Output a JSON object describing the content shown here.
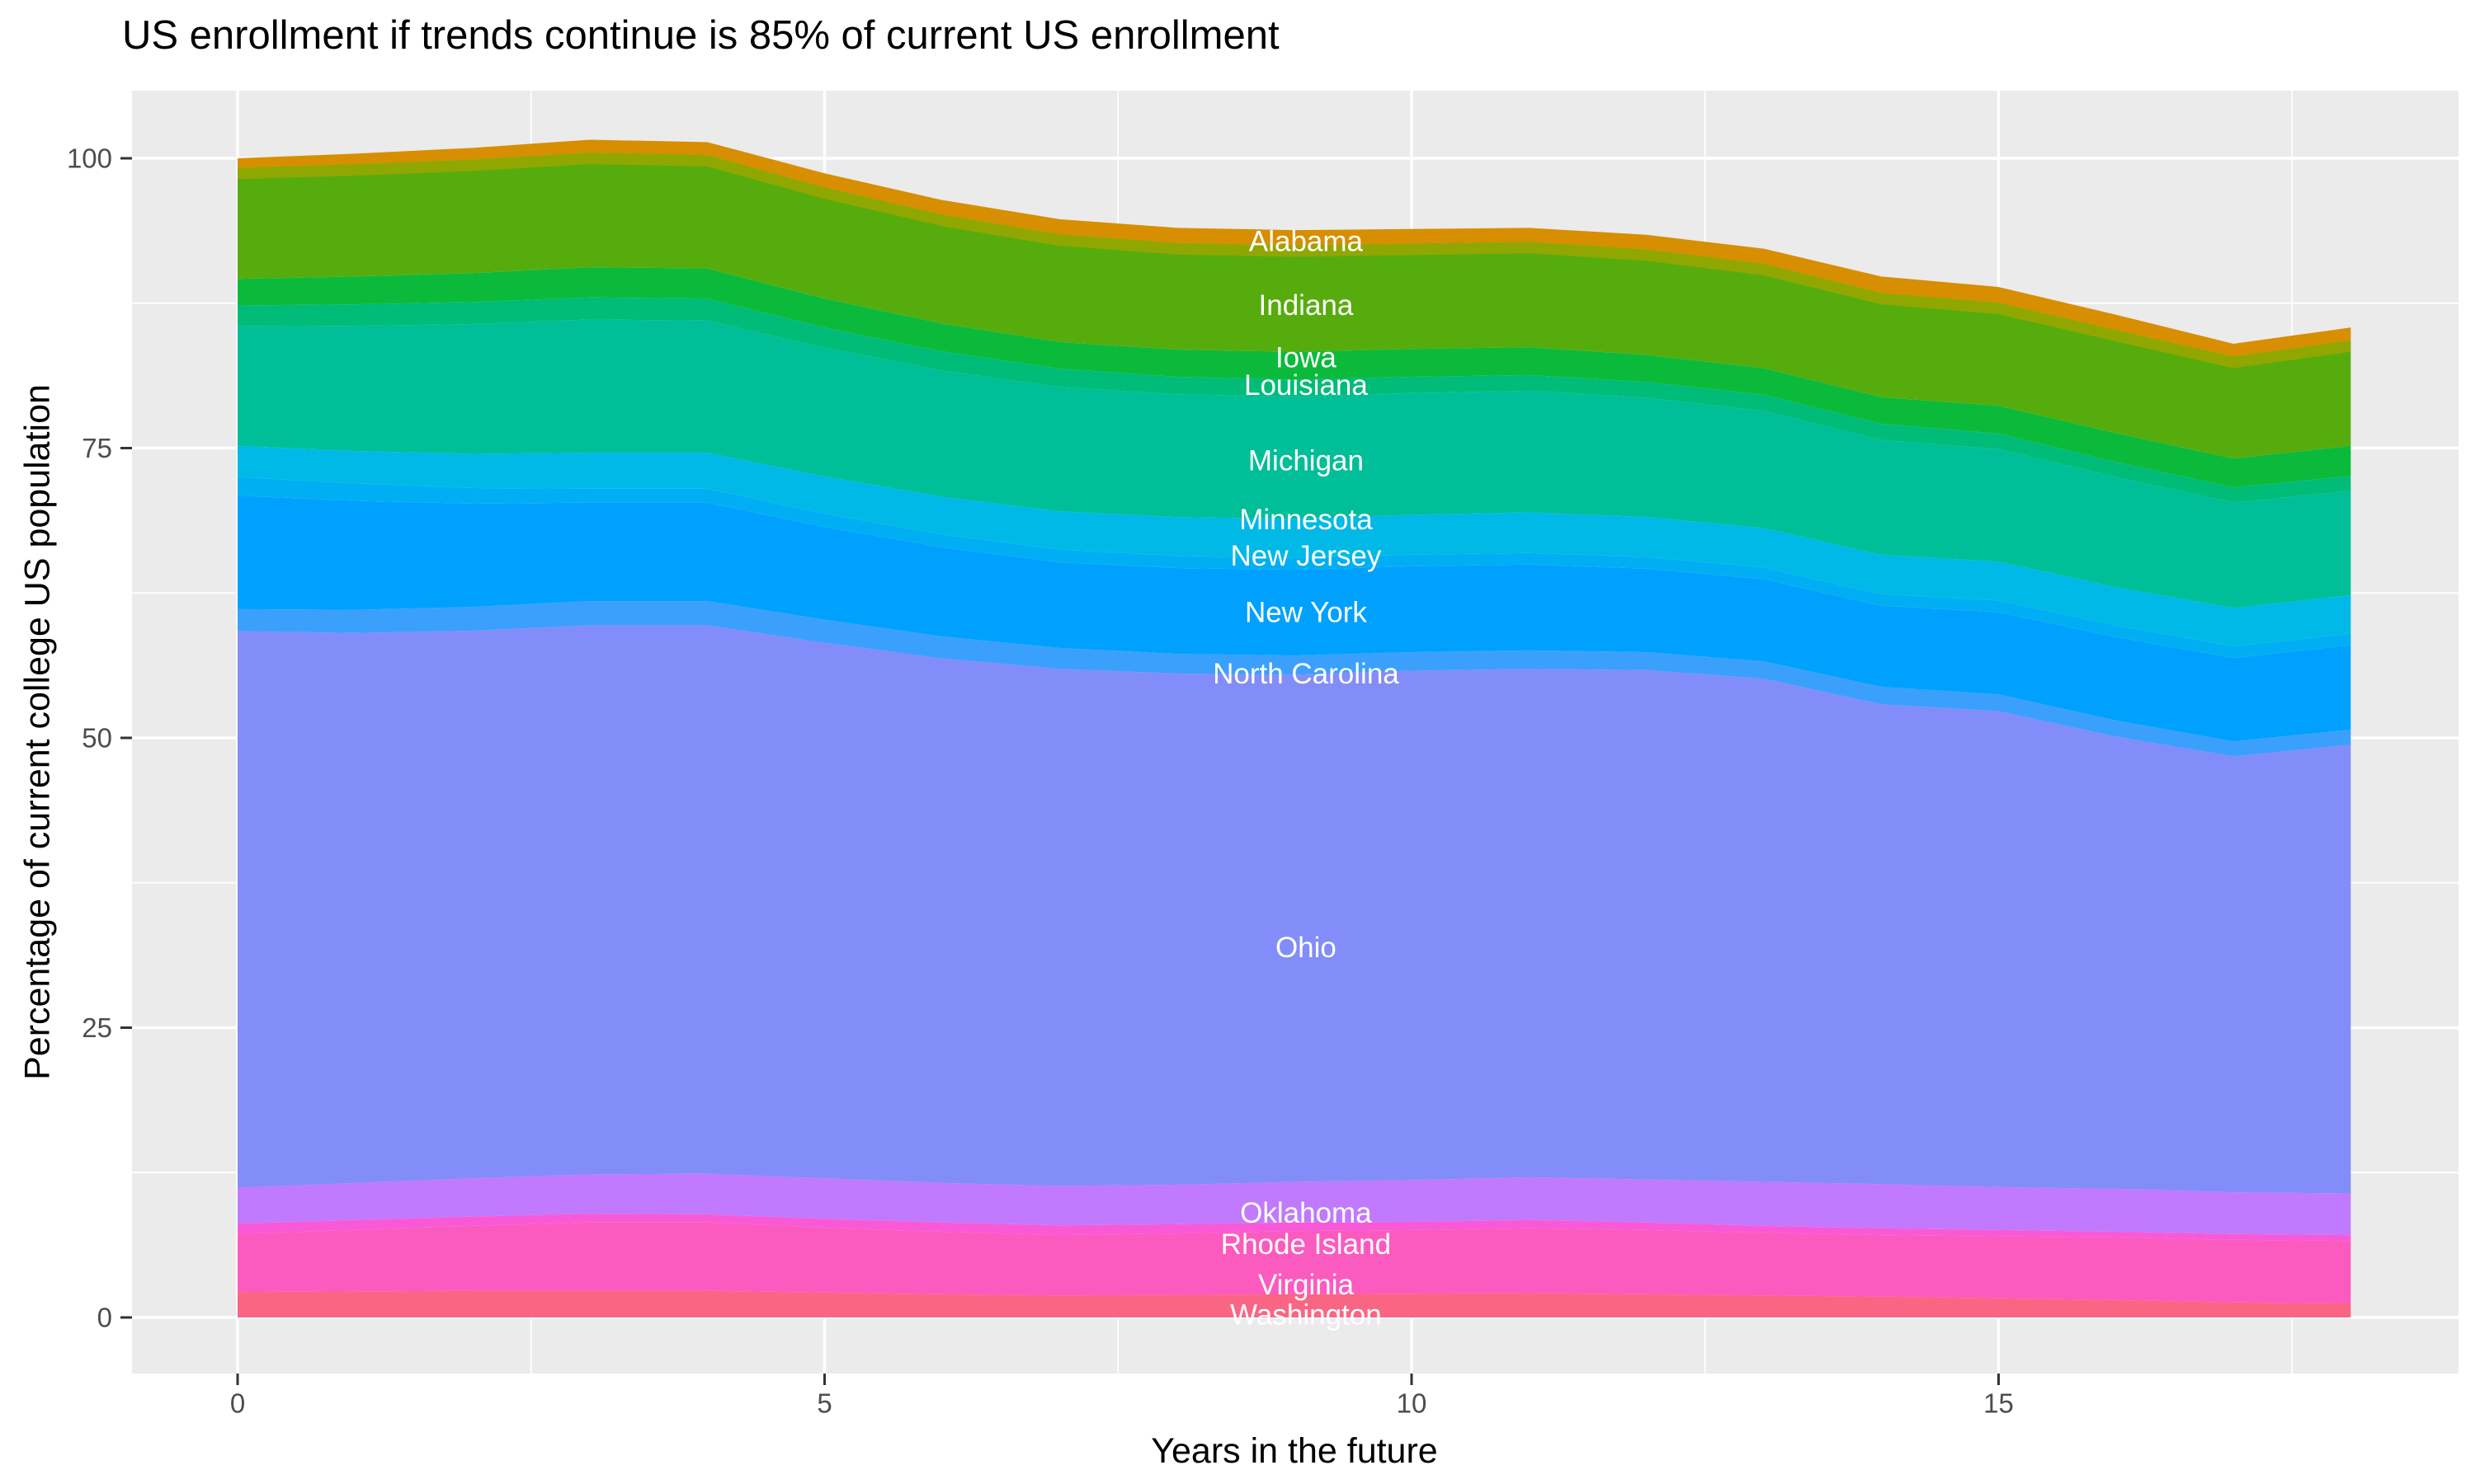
{
  "chart_data": {
    "type": "area",
    "stacked": true,
    "stack_order": "first series listed is the top band, last series is the bottom band",
    "title": "US enrollment if trends continue is 85% of current US enrollment",
    "xlabel": "Years in the future",
    "ylabel": "Percentage of current college US population",
    "x": [
      0,
      1,
      2,
      3,
      4,
      5,
      6,
      7,
      8,
      9,
      10,
      11,
      12,
      13,
      14,
      15,
      16,
      17,
      18
    ],
    "xlim": [
      0,
      18
    ],
    "ylim": [
      0,
      100
    ],
    "xticks": [
      0,
      5,
      10,
      15
    ],
    "yticks": [
      0,
      25,
      50,
      75,
      100
    ],
    "x_minor_gridlines": [
      2.5,
      7.5,
      12.5,
      17.5
    ],
    "y_minor_gridlines": [
      12.5,
      37.5,
      62.5,
      87.5
    ],
    "grid": "on",
    "legend_position": "none (bands labeled inline with white text)",
    "inline_label_year": 9.1,
    "total_stacked_percentage": [
      100.0,
      100.4,
      100.9,
      101.6,
      101.4,
      98.7,
      96.4,
      94.7,
      94.0,
      93.8,
      93.9,
      94.0,
      93.4,
      92.2,
      89.8,
      88.9,
      86.5,
      84.0,
      85.4
    ],
    "series": [
      {
        "name": "Alabama",
        "color": "#D78E00",
        "label_pct": 92.8,
        "values": [
          0.8,
          0.9,
          1.0,
          1.1,
          1.1,
          1.2,
          1.25,
          1.3,
          1.3,
          1.3,
          1.25,
          1.2,
          1.25,
          1.3,
          1.4,
          1.35,
          1.3,
          1.1,
          1.1
        ]
      },
      {
        "name": "Indiana",
        "color": "#56AC0D",
        "label_pct": 87.3,
        "top_stripe": {
          "color": "#90A702",
          "units": 1.0
        },
        "values": [
          9.6,
          9.7,
          9.8,
          9.9,
          9.8,
          9.6,
          9.4,
          9.3,
          9.2,
          9.2,
          9.1,
          9.1,
          9.1,
          9.0,
          9.0,
          8.9,
          8.9,
          8.8,
          9.1
        ]
      },
      {
        "name": "Iowa",
        "color": "#0BBA3B",
        "label_pct": 82.8,
        "values": [
          2.3,
          2.4,
          2.5,
          2.6,
          2.6,
          2.5,
          2.4,
          2.3,
          2.35,
          2.4,
          2.4,
          2.4,
          2.35,
          2.3,
          2.3,
          2.4,
          2.5,
          2.5,
          2.6
        ]
      },
      {
        "name": "Louisiana",
        "color": "#00BC78",
        "label_pct": 80.4,
        "values": [
          1.8,
          1.85,
          1.9,
          1.9,
          1.9,
          1.75,
          1.65,
          1.6,
          1.5,
          1.45,
          1.4,
          1.35,
          1.35,
          1.4,
          1.4,
          1.35,
          1.3,
          1.3,
          1.3
        ]
      },
      {
        "name": "Michigan",
        "color": "#00BE97",
        "label_pct": 73.9,
        "values": [
          10.3,
          10.8,
          11.2,
          11.5,
          11.4,
          11.1,
          10.9,
          10.7,
          10.6,
          10.55,
          10.5,
          10.5,
          10.3,
          10.1,
          9.9,
          9.7,
          9.5,
          9.1,
          9.0
        ]
      },
      {
        "name": "Minnesota",
        "color": "#00B9E7",
        "label_pct": 68.8,
        "values": [
          2.7,
          2.8,
          2.95,
          3.1,
          3.1,
          3.2,
          3.25,
          3.3,
          3.35,
          3.4,
          3.45,
          3.5,
          3.45,
          3.4,
          3.4,
          3.35,
          3.3,
          3.3,
          3.3
        ]
      },
      {
        "name": "New Jersey",
        "color": "#00AEF4",
        "label_pct": 65.7,
        "values": [
          1.6,
          1.5,
          1.35,
          1.2,
          1.2,
          1.15,
          1.1,
          1.1,
          1.05,
          1.0,
          1.0,
          1.0,
          1.0,
          1.0,
          1.0,
          1.0,
          1.0,
          1.0,
          1.0
        ]
      },
      {
        "name": "New York",
        "color": "#00A1FE",
        "label_pct": 60.8,
        "values": [
          9.8,
          9.4,
          8.9,
          8.5,
          8.5,
          8.0,
          7.7,
          7.4,
          7.4,
          7.4,
          7.4,
          7.4,
          7.2,
          7.1,
          7.0,
          7.1,
          7.2,
          7.2,
          7.3
        ]
      },
      {
        "name": "North Carolina",
        "color": "#3BA0FC",
        "label_pct": 55.5,
        "values": [
          1.9,
          2.0,
          2.05,
          2.1,
          2.1,
          2.0,
          1.9,
          1.8,
          1.7,
          1.65,
          1.6,
          1.6,
          1.55,
          1.5,
          1.5,
          1.45,
          1.4,
          1.3,
          1.3
        ]
      },
      {
        "name": "Ohio",
        "color": "#828DF9",
        "label_pct": 31.9,
        "values": [
          48.0,
          47.45,
          47.25,
          47.35,
          47.3,
          46.2,
          45.25,
          44.6,
          44.1,
          43.75,
          43.95,
          43.85,
          43.95,
          43.4,
          41.4,
          41.05,
          39.0,
          37.6,
          38.7
        ]
      },
      {
        "name": "Oklahoma",
        "color": "#C179FD",
        "label_pct": 9.0,
        "values": [
          3.1,
          3.2,
          3.3,
          3.4,
          3.5,
          3.5,
          3.4,
          3.4,
          3.4,
          3.5,
          3.6,
          3.7,
          3.7,
          3.8,
          3.8,
          3.7,
          3.7,
          3.6,
          3.6
        ]
      },
      {
        "name": "Rhode Island",
        "color": "#F959D6",
        "label_pct": 6.3,
        "values": [
          0.9,
          0.85,
          0.8,
          0.75,
          0.7,
          0.75,
          0.8,
          0.85,
          0.8,
          0.75,
          0.7,
          0.7,
          0.65,
          0.6,
          0.6,
          0.55,
          0.5,
          0.5,
          0.5
        ]
      },
      {
        "name": "Virginia",
        "color": "#FB5BBE",
        "label_pct": 2.8,
        "values": [
          5.0,
          5.3,
          5.6,
          5.9,
          5.9,
          5.6,
          5.4,
          5.2,
          5.3,
          5.45,
          5.5,
          5.6,
          5.55,
          5.4,
          5.3,
          5.35,
          5.4,
          5.4,
          5.4
        ]
      },
      {
        "name": "Washington",
        "color": "#FB6584",
        "label_pct": 0.2,
        "values": [
          2.2,
          2.25,
          2.3,
          2.3,
          2.3,
          2.15,
          2.0,
          1.9,
          1.95,
          2.0,
          2.05,
          2.1,
          2.0,
          1.9,
          1.8,
          1.65,
          1.5,
          1.3,
          1.2
        ]
      }
    ],
    "panel": {
      "bg": "#EBEBEB",
      "grid_color": "#FFFFFF",
      "tick_color": "#333333",
      "tick_label_color": "#4D4D4D",
      "title_color": "#000000",
      "inline_label_color": "#FFFFFF"
    }
  }
}
